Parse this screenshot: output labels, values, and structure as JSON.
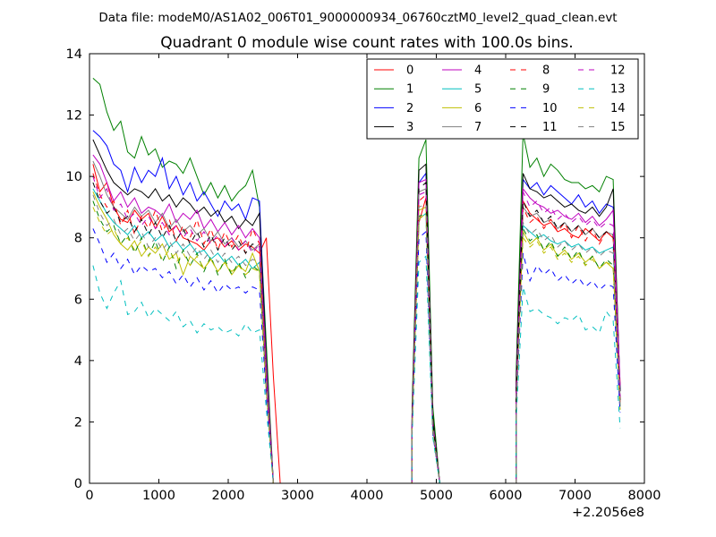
{
  "chart_data": {
    "type": "line",
    "suptitle": "Data file: modeM0/AS1A02_006T01_9000000934_06760cztM0_level2_quad_clean.evt",
    "title": "Quadrant 0 module wise count rates with 100.0s bins.",
    "xlabel": "",
    "ylabel": "",
    "x_offset_label": "+2.2056e8",
    "xlim": [
      0,
      8000
    ],
    "ylim": [
      0,
      14
    ],
    "xticks": [
      0,
      1000,
      2000,
      3000,
      4000,
      5000,
      6000,
      7000,
      8000
    ],
    "xtick_labels": [
      "0",
      "1000",
      "2000",
      "3000",
      "4000",
      "5000",
      "6000",
      "7000",
      "8000"
    ],
    "yticks": [
      0,
      2,
      4,
      6,
      8,
      10,
      12,
      14
    ],
    "ytick_labels": [
      "0",
      "2",
      "4",
      "6",
      "8",
      "10",
      "12",
      "14"
    ],
    "legend": {
      "placement": "top-right",
      "ncol": 4
    },
    "segments": [
      {
        "start": 50,
        "n": 27
      },
      {
        "start": 4650,
        "n": 4
      },
      {
        "start": 6150,
        "n": 16
      }
    ],
    "zero_spans": [
      [
        2750,
        4650
      ],
      [
        5050,
        6150
      ]
    ],
    "series": [
      {
        "name": "0",
        "color": "#ff0000",
        "dash": "solid",
        "seg1": [
          10.4,
          9.5,
          9.8,
          9.0,
          8.6,
          8.5,
          8.9,
          8.6,
          8.8,
          8.3,
          8.7,
          8.2,
          8.4,
          8.0,
          7.9,
          7.8,
          7.6,
          7.9,
          8.0,
          7.7,
          7.9,
          7.6,
          7.8,
          7.7,
          7.5,
          8.0,
          3.5
        ],
        "seg2": [
          2.0,
          8.5,
          9.3,
          2.0
        ],
        "seg3": [
          3.0,
          9.2,
          8.8,
          8.6,
          8.4,
          8.5,
          8.2,
          8.3,
          8.1,
          8.0,
          8.3,
          8.1,
          7.9,
          8.2,
          8.0,
          3.2
        ]
      },
      {
        "name": "1",
        "color": "#008000",
        "dash": "solid",
        "seg1": [
          13.2,
          13.0,
          12.1,
          11.5,
          11.8,
          10.8,
          10.6,
          11.3,
          10.7,
          10.9,
          10.3,
          10.5,
          10.4,
          10.1,
          10.6,
          10.0,
          9.4,
          9.8,
          9.3,
          9.7,
          9.2,
          9.5,
          9.7,
          10.2,
          9.0,
          4.5,
          0.0
        ],
        "seg2": [
          2.5,
          10.6,
          11.2,
          2.5
        ],
        "seg3": [
          3.5,
          11.4,
          10.3,
          10.6,
          10.0,
          10.4,
          10.2,
          9.9,
          9.8,
          9.8,
          9.6,
          9.7,
          9.5,
          10.0,
          9.9,
          3.0
        ]
      },
      {
        "name": "2",
        "color": "#0000ff",
        "dash": "solid",
        "seg1": [
          11.5,
          11.3,
          11.0,
          10.4,
          10.2,
          9.5,
          10.3,
          9.8,
          10.2,
          10.0,
          10.6,
          9.6,
          10.0,
          9.4,
          9.8,
          9.2,
          9.5,
          9.1,
          8.7,
          9.2,
          8.9,
          9.1,
          8.6,
          9.3,
          9.2,
          4.0,
          0.0
        ],
        "seg2": [
          2.0,
          9.8,
          10.1,
          2.0
        ],
        "seg3": [
          3.0,
          9.9,
          9.6,
          9.8,
          9.4,
          9.7,
          9.5,
          9.3,
          9.1,
          9.4,
          9.0,
          9.2,
          8.8,
          9.1,
          9.0,
          3.0
        ]
      },
      {
        "name": "3",
        "color": "#000000",
        "dash": "solid",
        "seg1": [
          11.2,
          10.7,
          10.2,
          9.8,
          9.6,
          9.4,
          9.6,
          9.5,
          9.3,
          9.6,
          9.2,
          9.4,
          9.0,
          9.3,
          9.1,
          8.8,
          9.0,
          8.7,
          8.9,
          8.5,
          8.7,
          8.3,
          8.6,
          8.4,
          8.8,
          4.0,
          0.0
        ],
        "seg2": [
          2.2,
          10.2,
          10.4,
          2.2
        ],
        "seg3": [
          3.2,
          10.1,
          9.6,
          9.5,
          9.3,
          9.4,
          9.2,
          9.0,
          9.1,
          8.9,
          8.8,
          9.0,
          8.7,
          9.0,
          9.6,
          3.0
        ]
      },
      {
        "name": "4",
        "color": "#bf00bf",
        "dash": "solid",
        "seg1": [
          10.7,
          10.4,
          9.8,
          9.2,
          9.5,
          9.0,
          9.3,
          8.8,
          9.0,
          8.9,
          8.7,
          9.1,
          8.5,
          8.8,
          8.6,
          8.9,
          8.3,
          8.6,
          8.2,
          8.5,
          8.1,
          8.4,
          8.0,
          8.3,
          8.0,
          3.8,
          0.0
        ],
        "seg2": [
          2.0,
          9.8,
          9.9,
          2.0
        ],
        "seg3": [
          3.0,
          9.6,
          9.3,
          9.1,
          9.0,
          8.8,
          8.9,
          8.7,
          8.6,
          8.8,
          8.5,
          8.7,
          8.4,
          8.6,
          8.9,
          3.2
        ]
      },
      {
        "name": "5",
        "color": "#00bfbf",
        "dash": "solid",
        "seg1": [
          9.6,
          9.2,
          8.8,
          8.5,
          8.3,
          8.1,
          8.4,
          8.0,
          8.2,
          7.9,
          8.1,
          7.7,
          7.9,
          7.6,
          7.8,
          7.5,
          7.6,
          7.3,
          7.5,
          7.2,
          7.4,
          7.1,
          7.3,
          7.0,
          7.2,
          3.2,
          0.0
        ],
        "seg2": [
          1.8,
          8.6,
          8.8,
          1.8
        ],
        "seg3": [
          2.6,
          8.4,
          8.2,
          8.0,
          8.1,
          7.9,
          7.8,
          7.9,
          7.7,
          7.8,
          7.6,
          7.7,
          7.5,
          7.6,
          7.7,
          2.5
        ]
      },
      {
        "name": "6",
        "color": "#bfbf00",
        "dash": "solid",
        "seg1": [
          9.5,
          9.0,
          8.6,
          8.1,
          7.8,
          7.6,
          7.9,
          7.4,
          7.7,
          7.5,
          7.8,
          7.3,
          7.5,
          6.8,
          7.4,
          7.2,
          7.0,
          7.3,
          6.9,
          7.2,
          6.8,
          7.1,
          6.9,
          7.5,
          6.9,
          3.0,
          0.0
        ],
        "seg2": [
          1.8,
          8.9,
          9.0,
          1.8
        ],
        "seg3": [
          2.6,
          8.2,
          7.8,
          8.0,
          7.6,
          7.8,
          7.4,
          7.6,
          7.3,
          7.5,
          7.2,
          7.4,
          7.0,
          7.2,
          7.0,
          2.5
        ]
      },
      {
        "name": "7",
        "color": "#808080",
        "dash": "solid",
        "seg1": [
          10.5,
          10.0,
          9.4,
          9.0,
          8.8,
          8.6,
          9.0,
          8.7,
          8.9,
          8.5,
          8.8,
          8.3,
          8.6,
          8.2,
          8.4,
          8.1,
          8.3,
          7.9,
          8.2,
          7.8,
          8.0,
          7.7,
          7.9,
          7.6,
          7.8,
          3.5,
          0.0
        ],
        "seg2": [
          2.0,
          9.5,
          9.6,
          2.0
        ],
        "seg3": [
          2.8,
          9.0,
          8.7,
          8.8,
          8.5,
          8.6,
          8.3,
          8.5,
          8.2,
          8.4,
          8.1,
          8.3,
          8.0,
          8.2,
          8.1,
          2.8
        ]
      },
      {
        "name": "8",
        "color": "#ff0000",
        "dash": "dashed",
        "seg1": [
          10.1,
          9.4,
          9.0,
          9.2,
          8.4,
          8.9,
          8.1,
          8.7,
          8.3,
          8.9,
          8.2,
          8.6,
          7.9,
          8.4,
          8.0,
          8.6,
          7.8,
          8.3,
          7.6,
          8.2,
          7.7,
          8.1,
          7.5,
          8.3,
          7.8,
          3.3,
          0.0
        ],
        "seg2": [
          1.9,
          9.2,
          9.4,
          1.9
        ],
        "seg3": [
          2.7,
          9.0,
          8.5,
          8.7,
          8.3,
          8.6,
          8.2,
          8.5,
          8.0,
          8.4,
          7.9,
          8.3,
          7.8,
          8.2,
          8.0,
          2.6
        ]
      },
      {
        "name": "9",
        "color": "#008000",
        "dash": "dashed",
        "seg1": [
          9.2,
          8.6,
          8.2,
          8.4,
          7.8,
          8.1,
          7.5,
          8.0,
          7.4,
          7.9,
          7.2,
          7.7,
          7.0,
          7.6,
          7.1,
          7.5,
          6.9,
          7.4,
          6.8,
          7.3,
          6.8,
          7.2,
          6.7,
          7.1,
          6.9,
          3.0,
          0.0
        ],
        "seg2": [
          1.8,
          8.7,
          8.8,
          1.8
        ],
        "seg3": [
          2.5,
          8.3,
          7.9,
          8.1,
          7.6,
          7.9,
          7.4,
          7.7,
          7.3,
          7.6,
          7.1,
          7.4,
          7.0,
          7.3,
          7.1,
          2.4
        ]
      },
      {
        "name": "10",
        "color": "#0000ff",
        "dash": "dashed",
        "seg1": [
          8.3,
          7.8,
          7.2,
          7.5,
          7.0,
          7.3,
          6.8,
          7.1,
          6.9,
          7.0,
          6.7,
          6.9,
          6.5,
          6.8,
          6.4,
          6.7,
          6.3,
          6.6,
          6.2,
          6.5,
          6.3,
          6.4,
          6.2,
          6.4,
          6.3,
          2.8,
          0.0
        ],
        "seg2": [
          1.6,
          8.0,
          8.2,
          1.6
        ],
        "seg3": [
          2.3,
          7.5,
          6.6,
          7.1,
          6.8,
          7.0,
          6.6,
          6.8,
          6.5,
          6.7,
          6.4,
          6.6,
          6.3,
          6.5,
          6.4,
          2.3
        ]
      },
      {
        "name": "11",
        "color": "#000000",
        "dash": "dashed",
        "seg1": [
          9.8,
          9.2,
          8.8,
          9.0,
          8.5,
          8.7,
          8.2,
          8.6,
          8.1,
          8.5,
          8.0,
          8.4,
          7.9,
          8.3,
          7.8,
          8.2,
          7.7,
          8.1,
          7.6,
          8.0,
          7.6,
          7.9,
          7.5,
          7.8,
          7.7,
          3.4,
          0.0
        ],
        "seg2": [
          2.0,
          9.6,
          9.8,
          2.0
        ],
        "seg3": [
          2.8,
          9.2,
          8.7,
          8.9,
          8.5,
          8.7,
          8.3,
          8.5,
          8.2,
          8.4,
          8.1,
          8.3,
          8.0,
          8.2,
          8.1,
          2.7
        ]
      },
      {
        "name": "12",
        "color": "#bf00bf",
        "dash": "dashed",
        "seg1": [
          10.0,
          9.3,
          9.6,
          8.9,
          9.1,
          8.6,
          8.8,
          8.4,
          8.7,
          8.3,
          8.5,
          8.1,
          8.4,
          8.0,
          8.3,
          7.9,
          8.2,
          7.8,
          8.1,
          7.7,
          8.0,
          7.6,
          7.9,
          7.5,
          7.8,
          3.4,
          0.0
        ],
        "seg2": [
          1.9,
          9.4,
          9.5,
          1.9
        ],
        "seg3": [
          2.7,
          9.5,
          9.0,
          9.2,
          8.8,
          9.0,
          8.6,
          8.8,
          8.5,
          8.7,
          8.4,
          8.6,
          8.3,
          8.5,
          8.4,
          2.8
        ]
      },
      {
        "name": "13",
        "color": "#00bfbf",
        "dash": "dashed",
        "seg1": [
          7.1,
          6.2,
          5.7,
          6.2,
          6.6,
          5.5,
          5.6,
          5.9,
          5.4,
          5.7,
          5.5,
          5.3,
          5.6,
          5.1,
          5.3,
          4.9,
          5.2,
          5.0,
          5.1,
          4.9,
          5.0,
          4.8,
          5.2,
          4.9,
          5.0,
          2.4,
          0.0
        ],
        "seg2": [
          1.5,
          7.2,
          7.4,
          1.5
        ],
        "seg3": [
          2.0,
          6.4,
          5.6,
          5.7,
          5.5,
          5.4,
          5.2,
          5.4,
          5.3,
          5.5,
          5.0,
          5.1,
          4.9,
          5.6,
          5.3,
          1.8
        ]
      },
      {
        "name": "14",
        "color": "#bfbf00",
        "dash": "dashed",
        "seg1": [
          9.0,
          8.5,
          8.1,
          8.3,
          7.8,
          8.0,
          7.6,
          7.9,
          7.4,
          7.7,
          7.3,
          7.6,
          7.2,
          7.5,
          7.1,
          7.4,
          7.0,
          7.3,
          6.9,
          7.2,
          6.9,
          7.1,
          6.8,
          7.0,
          6.9,
          3.0,
          0.0
        ],
        "seg2": [
          1.7,
          8.6,
          8.8,
          1.7
        ],
        "seg3": [
          2.4,
          8.0,
          7.7,
          7.9,
          7.5,
          7.7,
          7.3,
          7.5,
          7.2,
          7.4,
          7.1,
          7.3,
          7.0,
          7.2,
          7.1,
          2.4
        ]
      },
      {
        "name": "15",
        "color": "#808080",
        "dash": "dashed",
        "seg1": [
          9.4,
          8.8,
          8.4,
          8.6,
          8.1,
          8.3,
          7.9,
          8.2,
          7.7,
          8.0,
          7.6,
          7.9,
          7.5,
          7.8,
          7.4,
          7.7,
          7.3,
          7.6,
          7.2,
          7.5,
          7.2,
          7.4,
          7.1,
          7.3,
          7.2,
          3.2,
          0.0
        ],
        "seg2": [
          1.8,
          9.0,
          9.1,
          1.8
        ],
        "seg3": [
          2.5,
          8.5,
          8.1,
          8.3,
          7.9,
          8.1,
          7.7,
          7.9,
          7.6,
          7.8,
          7.5,
          7.7,
          7.4,
          7.6,
          7.5,
          2.5
        ]
      }
    ]
  }
}
